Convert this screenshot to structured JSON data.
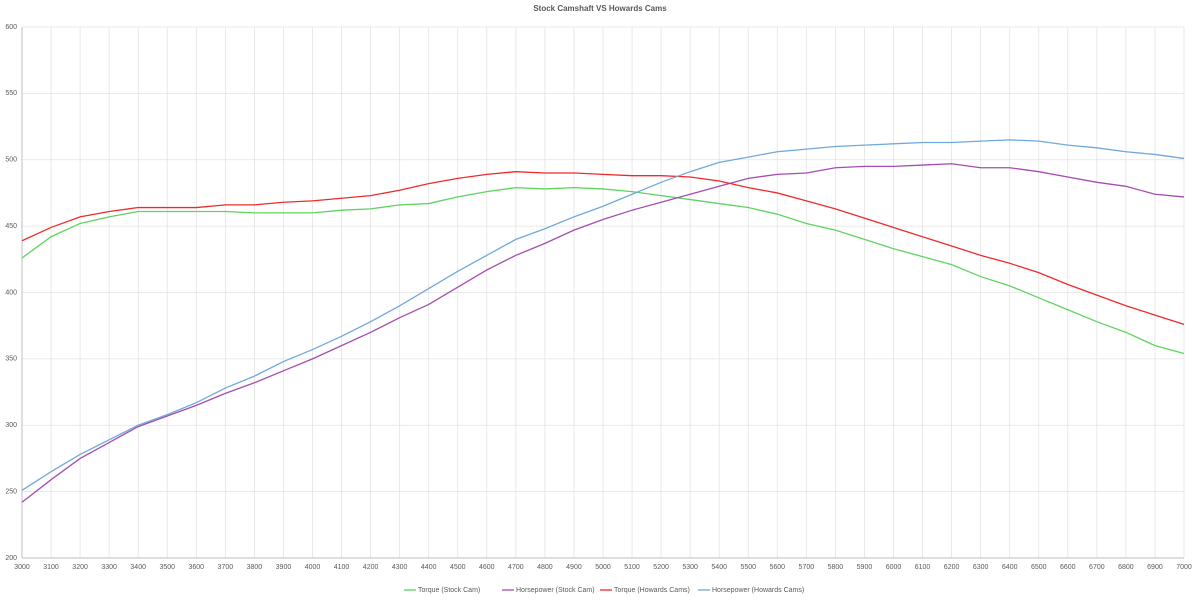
{
  "chart_data": {
    "type": "line",
    "title": "Stock Camshaft VS Howards Cams",
    "x": [
      3000,
      3100,
      3200,
      3300,
      3400,
      3500,
      3600,
      3700,
      3800,
      3900,
      4000,
      4100,
      4200,
      4300,
      4400,
      4500,
      4600,
      4700,
      4800,
      4900,
      5000,
      5100,
      5200,
      5300,
      5400,
      5500,
      5600,
      5700,
      5800,
      5900,
      6000,
      6100,
      6200,
      6300,
      6400,
      6500,
      6600,
      6700,
      6800,
      6900,
      7000
    ],
    "xlim": [
      3000,
      7000
    ],
    "xticks": [
      3000,
      3100,
      3200,
      3300,
      3400,
      3500,
      3600,
      3700,
      3800,
      3900,
      4000,
      4100,
      4200,
      4300,
      4400,
      4500,
      4600,
      4700,
      4800,
      4900,
      5000,
      5100,
      5200,
      5300,
      5400,
      5500,
      5600,
      5700,
      5800,
      5900,
      6000,
      6100,
      6200,
      6300,
      6400,
      6500,
      6600,
      6700,
      6800,
      6900,
      7000
    ],
    "ylim": [
      200,
      600
    ],
    "yticks": [
      200,
      250,
      300,
      350,
      400,
      450,
      500,
      550,
      600
    ],
    "grid": true,
    "legend": "bottom",
    "series": [
      {
        "name": "Torque (Stock Cam)",
        "color": "#5fd35f",
        "values": [
          426,
          442,
          452,
          457,
          461,
          461,
          461,
          461,
          460,
          460,
          460,
          462,
          463,
          466,
          467,
          472,
          476,
          479,
          478,
          479,
          478,
          476,
          473,
          470,
          467,
          464,
          459,
          452,
          447,
          440,
          433,
          427,
          421,
          412,
          405,
          396,
          387,
          378,
          370,
          360,
          354
        ]
      },
      {
        "name": "Horsepower (Stock Cam)",
        "color": "#a44db0",
        "values": [
          242,
          259,
          275,
          287,
          299,
          307,
          315,
          324,
          332,
          341,
          350,
          360,
          370,
          381,
          391,
          404,
          417,
          428,
          437,
          447,
          455,
          462,
          468,
          474,
          480,
          486,
          489,
          490,
          494,
          495,
          495,
          496,
          497,
          494,
          494,
          491,
          487,
          483,
          480,
          474,
          472
        ]
      },
      {
        "name": "Torque (Howards Cams)",
        "color": "#ee2b2b",
        "values": [
          439,
          449,
          457,
          461,
          464,
          464,
          464,
          466,
          466,
          468,
          469,
          471,
          473,
          477,
          482,
          486,
          489,
          491,
          490,
          490,
          489,
          488,
          488,
          487,
          484,
          479,
          475,
          469,
          463,
          456,
          449,
          442,
          435,
          428,
          422,
          415,
          406,
          398,
          390,
          383,
          376
        ]
      },
      {
        "name": "Horsepower (Howards Cams)",
        "color": "#6fa8dc",
        "values": [
          251,
          265,
          278,
          289,
          300,
          308,
          317,
          328,
          337,
          348,
          357,
          367,
          378,
          390,
          403,
          416,
          428,
          440,
          448,
          457,
          465,
          474,
          483,
          491,
          498,
          502,
          506,
          508,
          510,
          511,
          512,
          513,
          513,
          514,
          515,
          514,
          511,
          509,
          506,
          504,
          501
        ]
      }
    ]
  }
}
